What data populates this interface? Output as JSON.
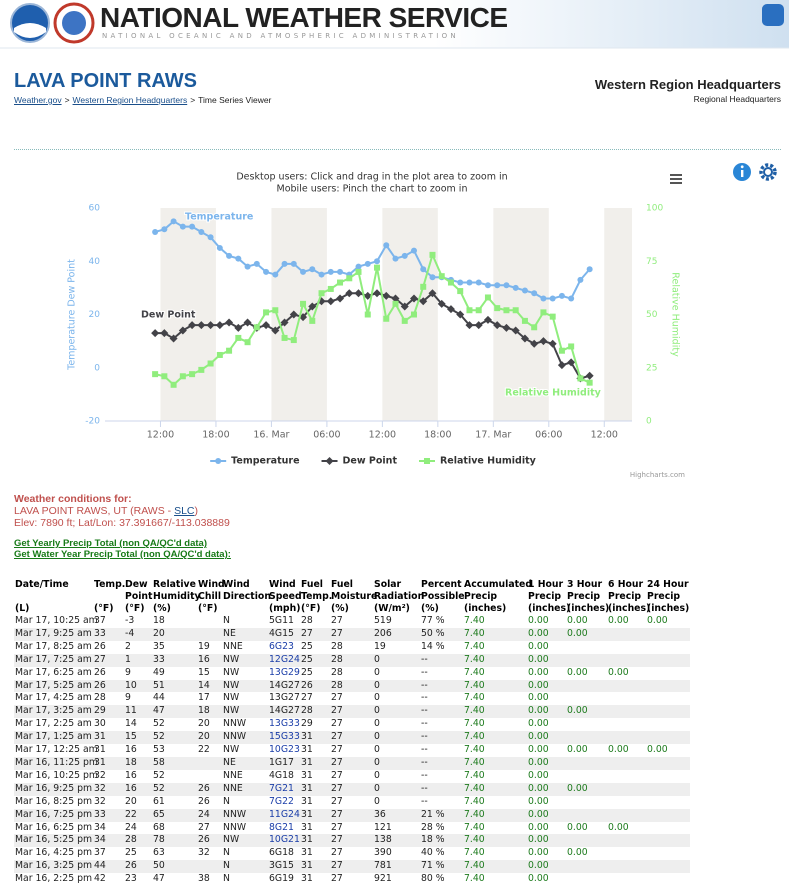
{
  "header": {
    "agency": "NATIONAL WEATHER SERVICE",
    "subagency": "NATIONAL OCEANIC AND ATMOSPHERIC ADMINISTRATION"
  },
  "page": {
    "title": "LAVA POINT RAWS",
    "breadcrumb": [
      "Weather.gov",
      "Western Region Headquarters",
      "Time Series Viewer"
    ],
    "separator": ">",
    "region": "Western Region Headquarters",
    "region_sub": "Regional Headquarters"
  },
  "chart_data": {
    "type": "line",
    "subtitle": [
      "Desktop users: Click and drag in the plot area to zoom in",
      "Mobile users: Pinch the chart to zoom in"
    ],
    "y_label": "Temperature Dew Point",
    "y2_label": "Relative Humidity",
    "credits": "Highcharts.com",
    "x": [
      11.42,
      12.42,
      13.42,
      14.42,
      15.42,
      16.42,
      17.42,
      18.42,
      19.42,
      20.42,
      21.42,
      22.42,
      23.42,
      24.42,
      25.42,
      26.42,
      27.42,
      28.42,
      29.42,
      30.42,
      31.42,
      32.42,
      33.42,
      34.42,
      35.42,
      36.42,
      37.42,
      38.42,
      39.42,
      40.42,
      41.42,
      42.42,
      43.42,
      44.42,
      45.42,
      46.42,
      47.42,
      48.42,
      49.42,
      50.42,
      51.42,
      52.42,
      53.42,
      54.42,
      55.42,
      56.42,
      57.42,
      58.42
    ],
    "xlim": [
      6,
      63
    ],
    "xticks": [
      {
        "value": 12,
        "label": "12:00"
      },
      {
        "value": 18,
        "label": "18:00"
      },
      {
        "value": 24,
        "label": "16. Mar"
      },
      {
        "value": 30,
        "label": "06:00"
      },
      {
        "value": 36,
        "label": "12:00"
      },
      {
        "value": 42,
        "label": "18:00"
      },
      {
        "value": 48,
        "label": "17. Mar"
      },
      {
        "value": 54,
        "label": "06:00"
      },
      {
        "value": 60,
        "label": "12:00"
      }
    ],
    "ylim": [
      -20,
      60
    ],
    "yticks": [
      -20,
      0,
      20,
      40,
      60
    ],
    "y2lim": [
      0,
      100
    ],
    "y2ticks": [
      0,
      25,
      50,
      75,
      100
    ],
    "alternate_band_color": "#f1efeb",
    "grid": false,
    "legend": "bottom",
    "series": [
      {
        "name": "Temperature",
        "color": "#7cb5ec",
        "marker": "circle",
        "values": [
          51,
          52,
          55,
          53,
          53,
          51,
          49,
          45,
          42,
          41,
          38,
          39,
          36,
          35,
          39,
          39,
          36,
          37,
          35,
          36,
          36,
          35,
          38,
          39,
          40,
          46,
          41,
          42,
          44,
          37,
          34,
          34,
          33,
          32,
          32,
          32,
          31,
          31,
          31,
          30,
          29,
          28,
          26,
          26,
          27,
          26,
          33,
          37
        ]
      },
      {
        "name": "Dew Point",
        "color": "#434348",
        "marker": "diamond",
        "values": [
          13,
          13,
          11,
          14,
          16,
          16,
          16,
          16,
          17,
          15,
          17,
          15,
          16,
          14,
          17,
          20,
          19,
          23,
          25,
          25,
          26,
          28,
          28,
          27,
          28,
          27,
          26,
          23,
          26,
          25,
          28,
          24,
          22,
          20,
          16,
          16,
          18,
          16,
          15,
          14,
          11,
          9,
          10,
          9,
          1,
          2,
          -4,
          -3
        ]
      },
      {
        "name": "Relative Humidity",
        "color": "#90ed7d",
        "marker": "square",
        "axis": "y2",
        "values": [
          22,
          21,
          17,
          21,
          22,
          24,
          27,
          31,
          33,
          39,
          37,
          44,
          51,
          52,
          39,
          38,
          55,
          47,
          60,
          62,
          65,
          67,
          70,
          50,
          72,
          48,
          55,
          47,
          50,
          63,
          78,
          68,
          65,
          61,
          52,
          52,
          58,
          53,
          52,
          52,
          47,
          44,
          51,
          49,
          33,
          35,
          20,
          18
        ]
      }
    ]
  },
  "conditions": {
    "heading": "Weather conditions for:",
    "station": [
      "LAVA POINT RAWS, UT (RAWS - ",
      "SLC",
      ")"
    ],
    "location": "Elev: 7890 ft; Lat/Lon: 37.391667/-113.038889",
    "links": [
      "Get Yearly Precip Total (non QA/QC'd data)",
      "Get Water Year Precip Total (non QA/QC'd data):"
    ]
  },
  "table": {
    "header_rows": [
      [
        "Date/Time",
        "Temp.",
        "Dew",
        "Relative",
        "Wind",
        "Wind",
        "Wind",
        "Fuel",
        "Fuel",
        "Solar",
        "Percent",
        "Accumulated",
        "1 Hour",
        "3 Hour",
        "6 Hour",
        "24 Hour"
      ],
      [
        null,
        null,
        "Point",
        "Humidity",
        "Chill",
        "Direction",
        "Speed",
        "Temp.",
        "Moisture",
        "Radiation",
        "Possible",
        "Precip",
        "Precip",
        "Precip",
        "Precip",
        "Precip"
      ],
      [
        "(L)",
        "(°F)",
        "(°F)",
        "(%)",
        "(°F)",
        null,
        "(mph)",
        "(°F)",
        "(%)",
        "(W/m²)",
        "(%)",
        "(inches)",
        "(inches)",
        "(inches)",
        "(inches)",
        "(inches)"
      ]
    ],
    "rows": [
      [
        "Mar 17, 10:25 am",
        "37",
        "-3",
        "18",
        null,
        "N",
        "5G11",
        "28",
        "27",
        "519",
        "77 %",
        "7.40",
        "0.00",
        "0.00",
        "0.00",
        "0.00"
      ],
      [
        "Mar 17, 9:25 am",
        "33",
        "-4",
        "20",
        null,
        "NE",
        "4G15",
        "27",
        "27",
        "206",
        "50 %",
        "7.40",
        "0.00",
        "0.00",
        null,
        null
      ],
      [
        "Mar 17, 8:25 am",
        "26",
        "2",
        "35",
        "19",
        "NNE",
        "6G23",
        "25",
        "28",
        "19",
        "14 %",
        "7.40",
        "0.00",
        null,
        null,
        null
      ],
      [
        "Mar 17, 7:25 am",
        "27",
        "1",
        "33",
        "16",
        "NW",
        "12G24",
        "25",
        "28",
        "0",
        "--",
        "7.40",
        "0.00",
        null,
        null,
        null
      ],
      [
        "Mar 17, 6:25 am",
        "26",
        "9",
        "49",
        "15",
        "NW",
        "13G29",
        "25",
        "28",
        "0",
        "--",
        "7.40",
        "0.00",
        "0.00",
        "0.00",
        null
      ],
      [
        "Mar 17, 5:25 am",
        "26",
        "10",
        "51",
        "14",
        "NW",
        "14G27",
        "26",
        "28",
        "0",
        "--",
        "7.40",
        "0.00",
        null,
        null,
        null
      ],
      [
        "Mar 17, 4:25 am",
        "28",
        "9",
        "44",
        "17",
        "NW",
        "13G27",
        "27",
        "27",
        "0",
        "--",
        "7.40",
        "0.00",
        null,
        null,
        null
      ],
      [
        "Mar 17, 3:25 am",
        "29",
        "11",
        "47",
        "18",
        "NW",
        "14G27",
        "28",
        "27",
        "0",
        "--",
        "7.40",
        "0.00",
        "0.00",
        null,
        null
      ],
      [
        "Mar 17, 2:25 am",
        "30",
        "14",
        "52",
        "20",
        "NNW",
        "13G33",
        "29",
        "27",
        "0",
        "--",
        "7.40",
        "0.00",
        null,
        null,
        null
      ],
      [
        "Mar 17, 1:25 am",
        "31",
        "15",
        "52",
        "20",
        "NNW",
        "15G33",
        "31",
        "27",
        "0",
        "--",
        "7.40",
        "0.00",
        null,
        null,
        null
      ],
      [
        "Mar 17, 12:25 am",
        "31",
        "16",
        "53",
        "22",
        "NW",
        "10G23",
        "31",
        "27",
        "0",
        "--",
        "7.40",
        "0.00",
        "0.00",
        "0.00",
        "0.00"
      ],
      [
        "Mar 16, 11:25 pm",
        "31",
        "18",
        "58",
        null,
        "NE",
        "1G17",
        "31",
        "27",
        "0",
        "--",
        "7.40",
        "0.00",
        null,
        null,
        null
      ],
      [
        "Mar 16, 10:25 pm",
        "32",
        "16",
        "52",
        null,
        "NNE",
        "4G18",
        "31",
        "27",
        "0",
        "--",
        "7.40",
        "0.00",
        null,
        null,
        null
      ],
      [
        "Mar 16, 9:25 pm",
        "32",
        "16",
        "52",
        "26",
        "NNE",
        "7G21",
        "31",
        "27",
        "0",
        "--",
        "7.40",
        "0.00",
        "0.00",
        null,
        null
      ],
      [
        "Mar 16, 8:25 pm",
        "32",
        "20",
        "61",
        "26",
        "N",
        "7G22",
        "31",
        "27",
        "0",
        "--",
        "7.40",
        "0.00",
        null,
        null,
        null
      ],
      [
        "Mar 16, 7:25 pm",
        "33",
        "22",
        "65",
        "24",
        "NNW",
        "11G24",
        "31",
        "27",
        "36",
        "21 %",
        "7.40",
        "0.00",
        null,
        null,
        null
      ],
      [
        "Mar 16, 6:25 pm",
        "34",
        "24",
        "68",
        "27",
        "NNW",
        "8G21",
        "31",
        "27",
        "121",
        "28 %",
        "7.40",
        "0.00",
        "0.00",
        "0.00",
        null
      ],
      [
        "Mar 16, 5:25 pm",
        "34",
        "28",
        "78",
        "26",
        "NW",
        "10G21",
        "31",
        "27",
        "138",
        "18 %",
        "7.40",
        "0.00",
        null,
        null,
        null
      ],
      [
        "Mar 16, 4:25 pm",
        "37",
        "25",
        "63",
        "32",
        "N",
        "6G18",
        "31",
        "27",
        "390",
        "40 %",
        "7.40",
        "0.00",
        "0.00",
        null,
        null
      ],
      [
        "Mar 16, 3:25 pm",
        "44",
        "26",
        "50",
        null,
        "N",
        "3G15",
        "31",
        "27",
        "781",
        "71 %",
        "7.40",
        "0.00",
        null,
        null,
        null
      ],
      [
        "Mar 16, 2:25 pm",
        "42",
        "23",
        "47",
        "38",
        "N",
        "6G19",
        "31",
        "27",
        "921",
        "80 %",
        "7.40",
        "0.00",
        null,
        null,
        null
      ]
    ]
  }
}
